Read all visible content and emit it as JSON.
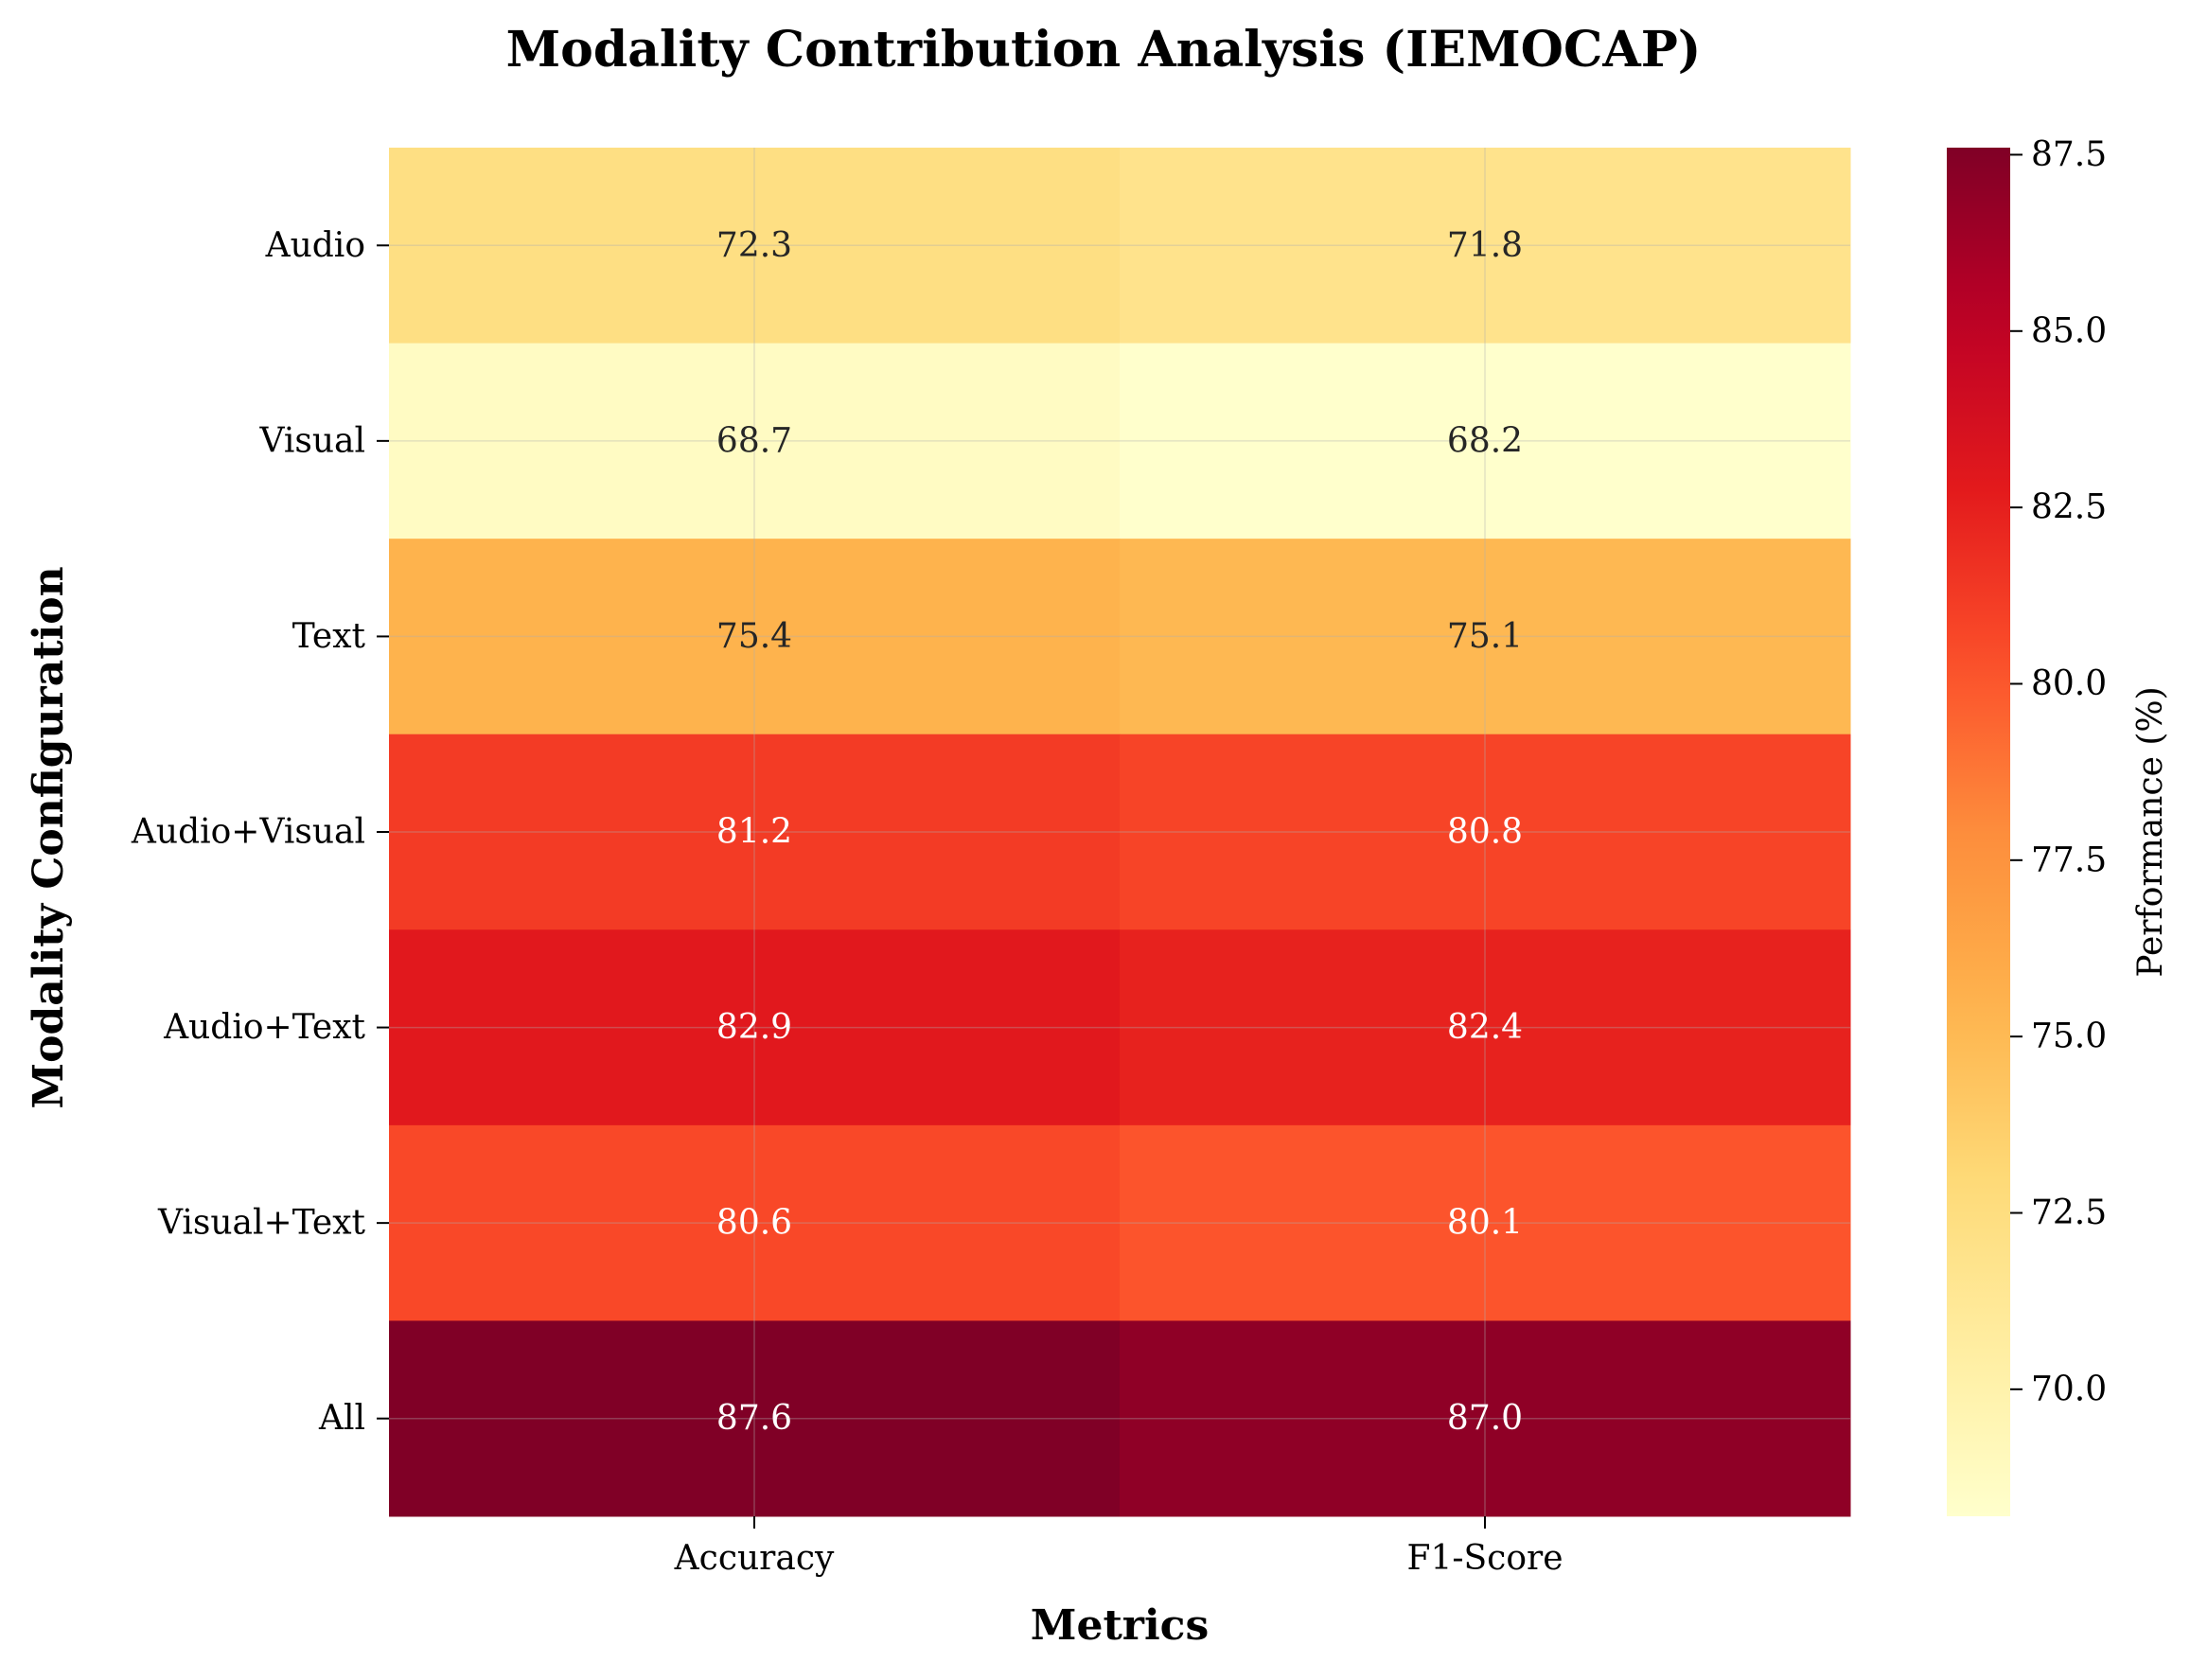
{
  "chart_data": {
    "type": "heatmap",
    "title": "Modality Contribution Analysis (IEMOCAP)",
    "xlabel": "Metrics",
    "ylabel": "Modality Configuration",
    "columns": [
      "Accuracy",
      "F1-Score"
    ],
    "rows": [
      "Audio",
      "Visual",
      "Text",
      "Audio+Visual",
      "Audio+Text",
      "Visual+Text",
      "All"
    ],
    "values": [
      [
        72.3,
        71.8
      ],
      [
        68.7,
        68.2
      ],
      [
        75.4,
        75.1
      ],
      [
        81.2,
        80.8
      ],
      [
        82.9,
        82.4
      ],
      [
        80.6,
        80.1
      ],
      [
        87.6,
        87.0
      ]
    ],
    "colorbar": {
      "label": "Performance (%)",
      "range": [
        68.2,
        87.6
      ],
      "ticks": [
        70.0,
        72.5,
        75.0,
        77.5,
        80.0,
        82.5,
        85.0,
        87.5
      ],
      "tick_labels": [
        "70.0",
        "72.5",
        "75.0",
        "77.5",
        "80.0",
        "82.5",
        "85.0",
        "87.5"
      ],
      "colormap": "YlOrRd"
    },
    "grid": true
  }
}
